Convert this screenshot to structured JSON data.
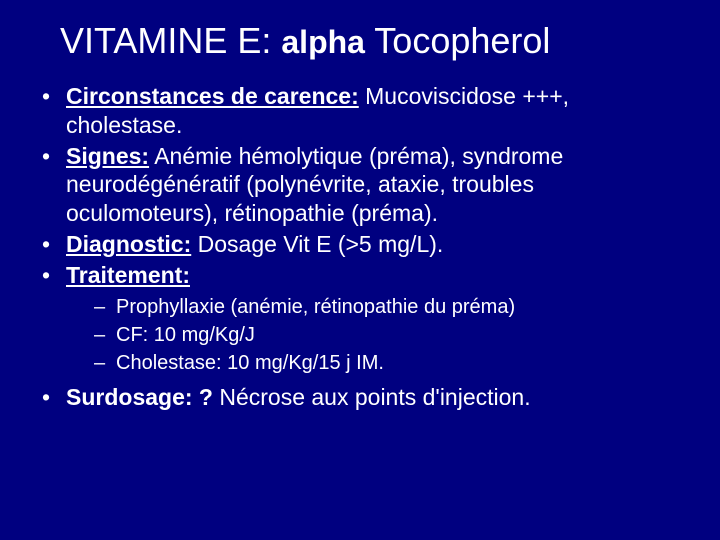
{
  "colors": {
    "background": "#000080",
    "text": "#ffffff"
  },
  "typography": {
    "font_family": "Arial",
    "title_size_pt": 36,
    "alpha_size_pt": 32,
    "bullet_size_pt": 23,
    "sub_bullet_size_pt": 20
  },
  "title": {
    "pre": "VITAMINE E: ",
    "alpha": "alpha",
    "post": " Tocopherol"
  },
  "bullets": [
    {
      "label": "Circonstances de carence:",
      "text": " Mucoviscidose +++, cholestase."
    },
    {
      "label": "Signes:",
      "text": " Anémie hémolytique (préma), syndrome neurodégénératif (polynévrite, ataxie, troubles oculomoteurs), rétinopathie (préma)."
    },
    {
      "label": "Diagnostic:",
      "text": " Dosage Vit E (>5 mg/L)."
    },
    {
      "label": "Traitement:",
      "text": ""
    }
  ],
  "sub_bullets": [
    "Prophyllaxie (anémie, rétinopathie du préma)",
    "CF: 10 mg/Kg/J",
    "Cholestase: 10 mg/Kg/15 j IM."
  ],
  "last_bullet": {
    "label": "Surdosage: ?",
    "text": " Nécrose aux points d'injection."
  }
}
